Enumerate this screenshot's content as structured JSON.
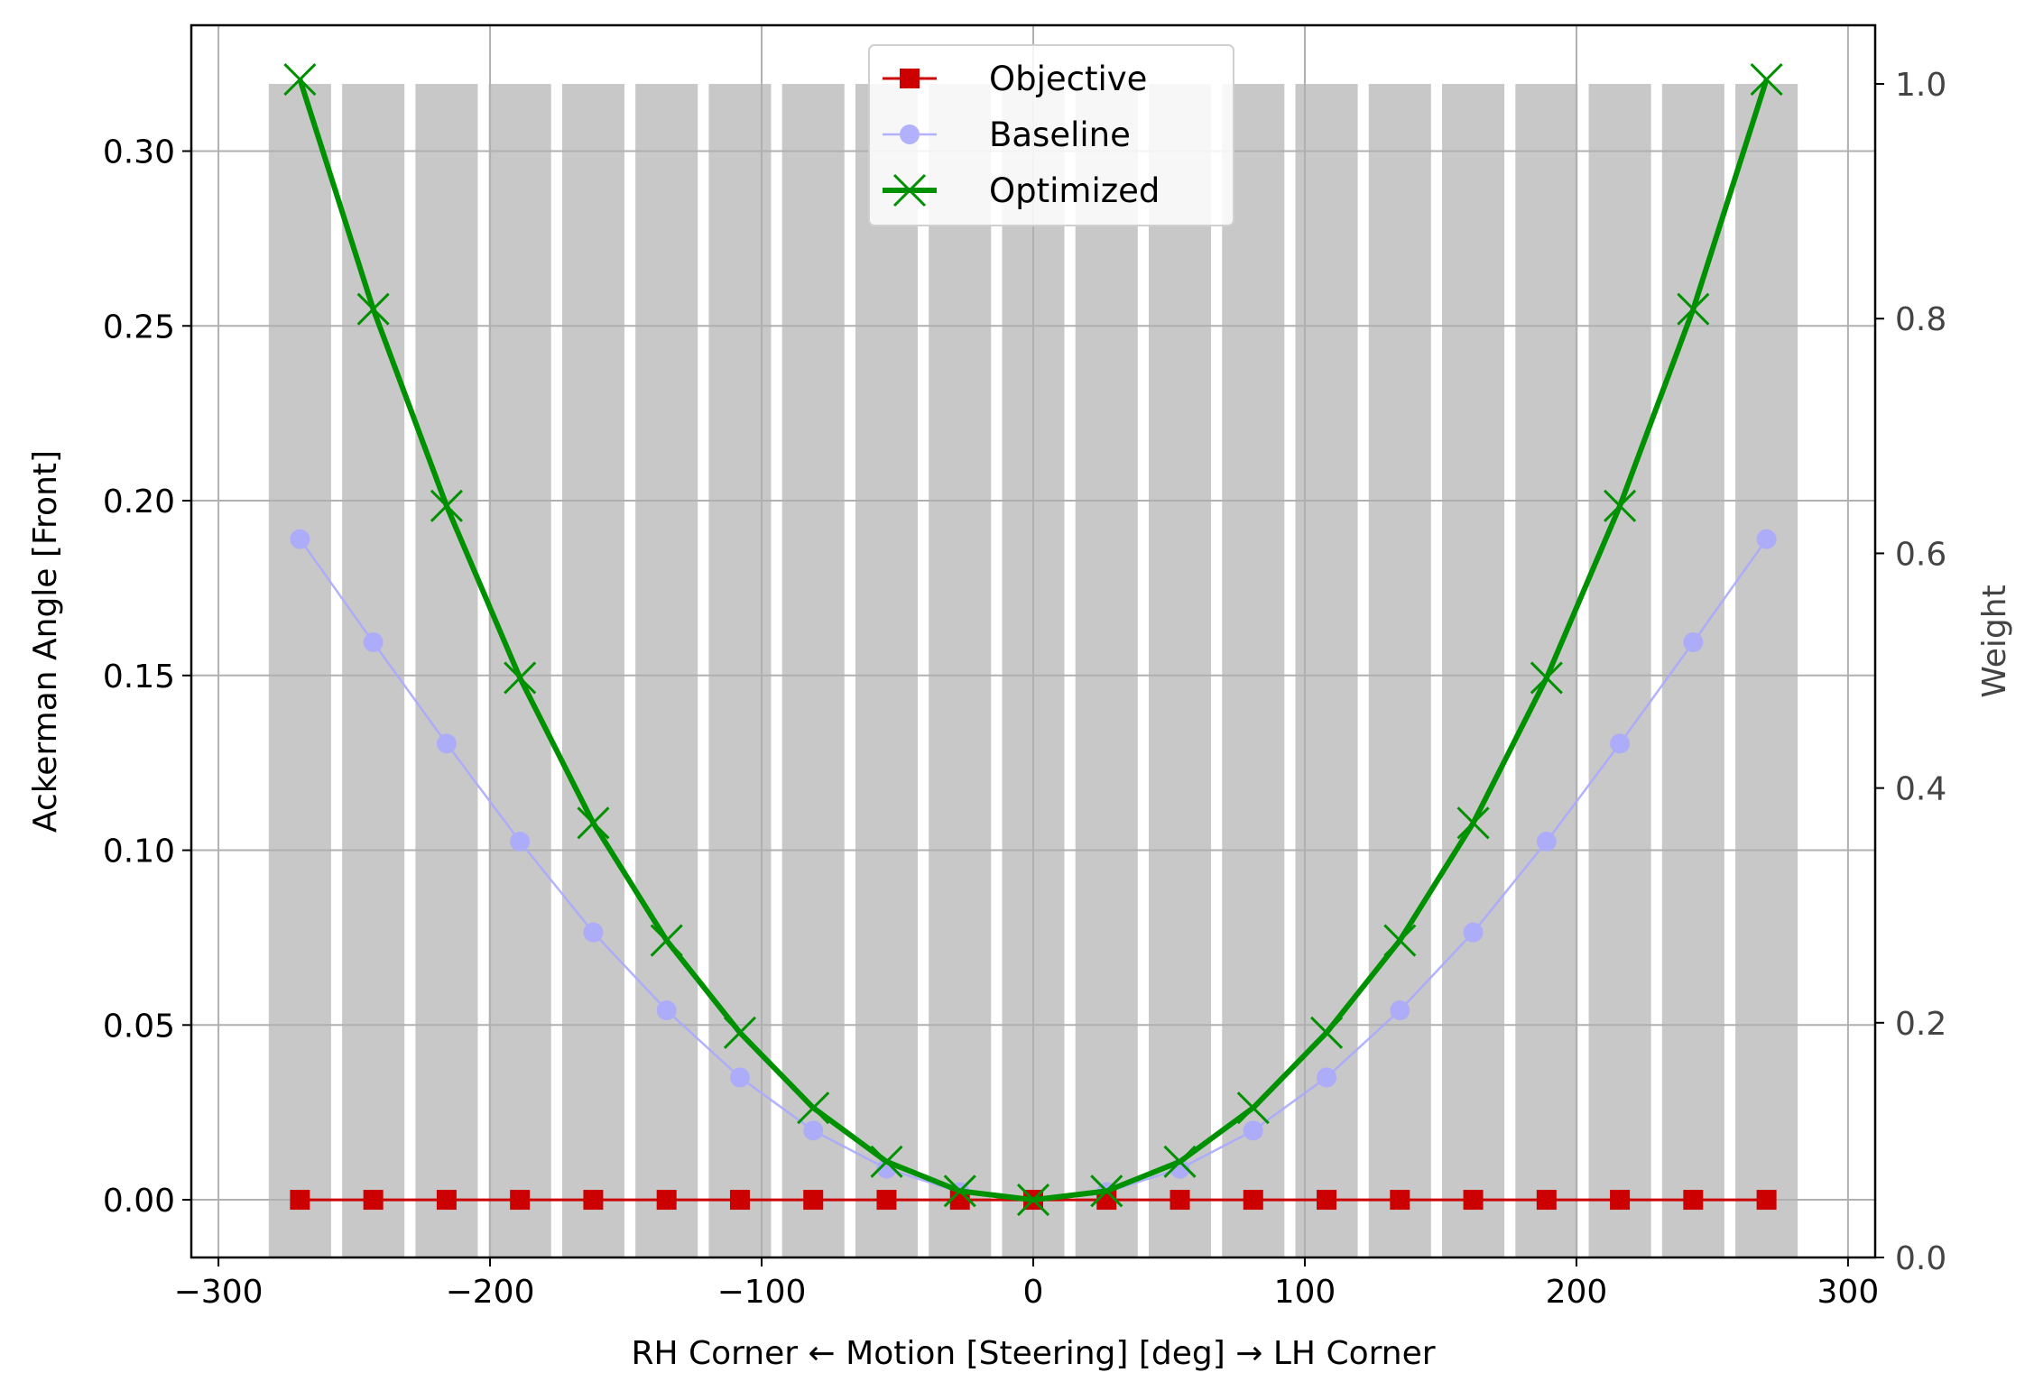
{
  "chart_data": {
    "type": "line",
    "xlabel": "RH Corner ← Motion [Steering] [deg] → LH Corner",
    "ylabel": "Ackerman Angle [Front]",
    "y2label": "Weight",
    "xlim": [
      -310,
      310
    ],
    "ylim": [
      -0.0165,
      0.336
    ],
    "y2lim": [
      0.0,
      1.05
    ],
    "xticks": [
      -300,
      -200,
      -100,
      0,
      100,
      200,
      300
    ],
    "xtick_labels": [
      "−300",
      "−200",
      "−100",
      "0",
      "100",
      "200",
      "300"
    ],
    "yticks": [
      0.0,
      0.05,
      0.1,
      0.15,
      0.2,
      0.25,
      0.3
    ],
    "ytick_labels": [
      "0.00",
      "0.05",
      "0.10",
      "0.15",
      "0.20",
      "0.25",
      "0.30"
    ],
    "y2ticks": [
      0.0,
      0.2,
      0.4,
      0.6,
      0.8,
      1.0
    ],
    "y2tick_labels": [
      "0.0",
      "0.2",
      "0.4",
      "0.6",
      "0.8",
      "1.0"
    ],
    "grid": true,
    "legend_position": "top-center",
    "x": [
      -270,
      -243,
      -216,
      -189,
      -162,
      -135,
      -108,
      -81,
      -54,
      -27,
      0,
      27,
      54,
      81,
      108,
      135,
      162,
      189,
      216,
      243,
      270
    ],
    "bars": {
      "name": "Weight",
      "axis": "right",
      "color": "#c8c8c8",
      "values": [
        1,
        1,
        1,
        1,
        1,
        1,
        1,
        1,
        1,
        1,
        1,
        1,
        1,
        1,
        1,
        1,
        1,
        1,
        1,
        1,
        1
      ]
    },
    "series": [
      {
        "name": "Objective",
        "color": "#cc0000",
        "marker": "square",
        "values": [
          0,
          0,
          0,
          0,
          0,
          0,
          0,
          0,
          0,
          0,
          0,
          0,
          0,
          0,
          0,
          0,
          0,
          0,
          0,
          0,
          0
        ]
      },
      {
        "name": "Baseline",
        "color": "#aaaaff",
        "marker": "circle",
        "values": [
          0.189,
          0.1595,
          0.1305,
          0.1025,
          0.0765,
          0.0542,
          0.035,
          0.0198,
          0.0089,
          0.0022,
          0.0,
          0.0022,
          0.0089,
          0.0198,
          0.035,
          0.0542,
          0.0765,
          0.1025,
          0.1305,
          0.1595,
          0.189
        ]
      },
      {
        "name": "Optimized",
        "color": "#009100",
        "marker": "x",
        "values": [
          0.3205,
          0.2548,
          0.1985,
          0.1493,
          0.1078,
          0.0742,
          0.0478,
          0.0263,
          0.0109,
          0.0025,
          0.0,
          0.0025,
          0.0109,
          0.0263,
          0.0478,
          0.0742,
          0.1078,
          0.1493,
          0.1985,
          0.2548,
          0.3205
        ]
      }
    ]
  }
}
